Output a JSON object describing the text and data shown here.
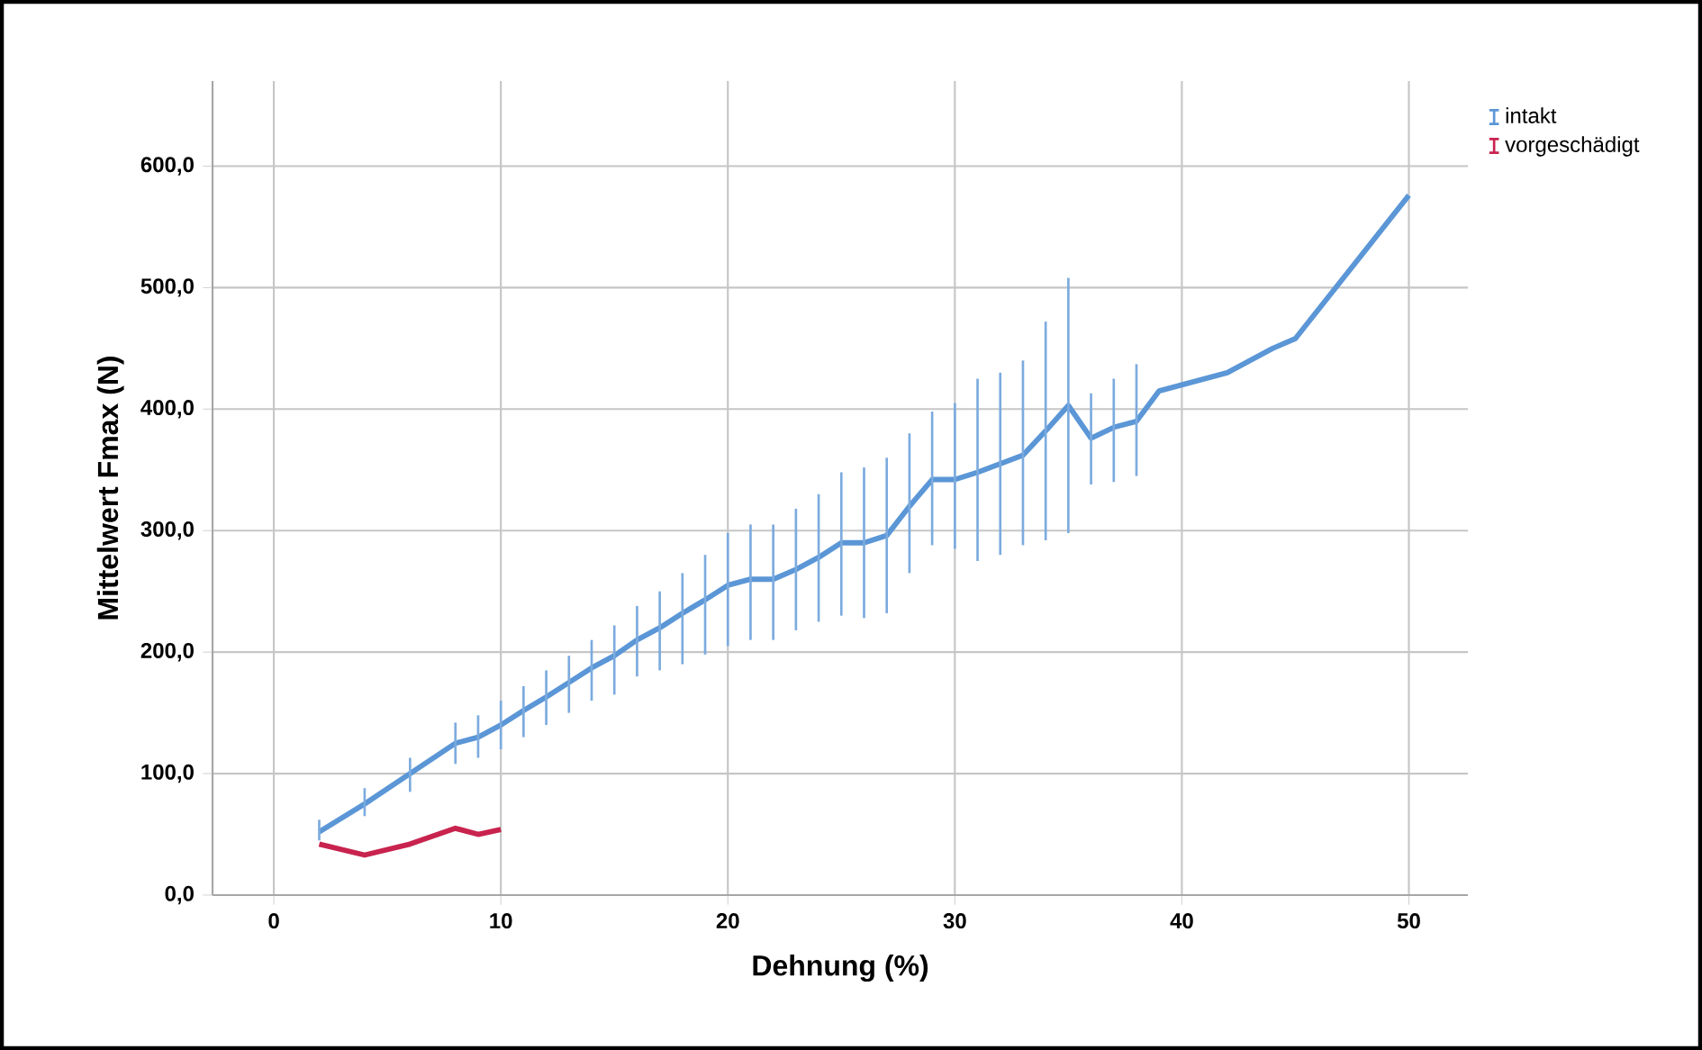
{
  "chart_data": {
    "type": "line",
    "xlabel": "Dehnung (%)",
    "ylabel": "Mittelwert Fmax (N)",
    "xlim": [
      -2.7,
      52.6
    ],
    "ylim": [
      0,
      670
    ],
    "xticks": [
      0,
      10,
      20,
      30,
      40,
      50
    ],
    "yticks": [
      {
        "value": 0,
        "label": "0,0"
      },
      {
        "value": 100,
        "label": "100,0"
      },
      {
        "value": 200,
        "label": "200,0"
      },
      {
        "value": 300,
        "label": "300,0"
      },
      {
        "value": 400,
        "label": "400,0"
      },
      {
        "value": 500,
        "label": "500,0"
      },
      {
        "value": 600,
        "label": "600,0"
      }
    ],
    "grid": true,
    "legend": "top right",
    "marker": "none",
    "line_style": "solid",
    "series": [
      {
        "name": "intakt",
        "color": "#5b96d6",
        "x": [
          2,
          4,
          6,
          8,
          9,
          10,
          11,
          12,
          13,
          14,
          15,
          16,
          17,
          18,
          19,
          20,
          21,
          22,
          23,
          24,
          25,
          26,
          27,
          28,
          29,
          30,
          31,
          32,
          33,
          34,
          35,
          36,
          37,
          38,
          39,
          40,
          42,
          44,
          45,
          50
        ],
        "values": [
          52,
          75,
          100,
          125,
          130,
          140,
          152,
          163,
          175,
          187,
          197,
          210,
          220,
          232,
          243,
          255,
          260,
          260,
          268,
          278,
          290,
          290,
          296,
          320,
          342,
          342,
          348,
          355,
          362,
          382,
          403,
          376,
          385,
          390,
          415,
          420,
          430,
          450,
          458,
          576
        ],
        "errors": [
          [
            45,
            62
          ],
          [
            65,
            88
          ],
          [
            85,
            113
          ],
          [
            108,
            142
          ],
          [
            113,
            148
          ],
          [
            120,
            160
          ],
          [
            130,
            172
          ],
          [
            140,
            185
          ],
          [
            150,
            197
          ],
          [
            160,
            210
          ],
          [
            165,
            222
          ],
          [
            180,
            238
          ],
          [
            185,
            250
          ],
          [
            190,
            265
          ],
          [
            198,
            280
          ],
          [
            205,
            298
          ],
          [
            210,
            305
          ],
          [
            210,
            305
          ],
          [
            218,
            318
          ],
          [
            225,
            330
          ],
          [
            230,
            348
          ],
          [
            228,
            352
          ],
          [
            232,
            360
          ],
          [
            265,
            380
          ],
          [
            288,
            398
          ],
          [
            285,
            405
          ],
          [
            275,
            425
          ],
          [
            280,
            430
          ],
          [
            288,
            440
          ],
          [
            292,
            472
          ],
          [
            298,
            508
          ],
          [
            338,
            413
          ],
          [
            340,
            425
          ],
          [
            345,
            437
          ],
          null,
          null,
          null,
          null,
          null,
          null
        ]
      },
      {
        "name": "vorgeschädigt",
        "color": "#c8234e",
        "x": [
          2,
          4,
          6,
          8,
          9,
          10
        ],
        "values": [
          42,
          33,
          42,
          55,
          50,
          54
        ]
      }
    ]
  }
}
